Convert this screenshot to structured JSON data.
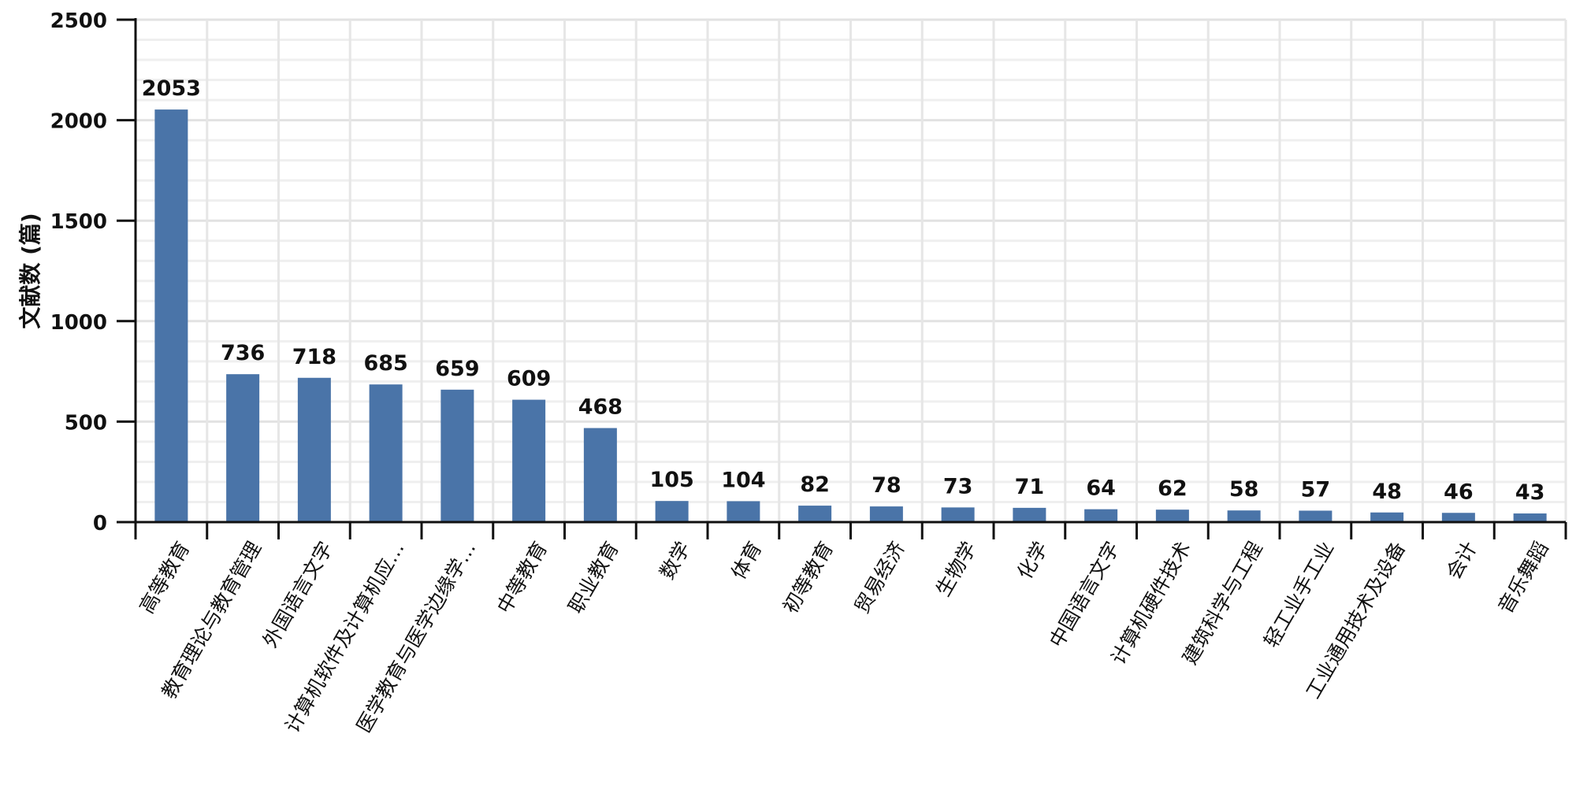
{
  "chart_data": {
    "type": "bar",
    "ylabel": "文献数 (篇)",
    "xlabel": "",
    "ylim": [
      0,
      2500
    ],
    "yticks": [
      "0",
      "500",
      "1000",
      "1500",
      "2000",
      "2500"
    ],
    "grid": true,
    "bar_color": "#4a74a8",
    "categories": [
      "高等教育",
      "教育理论与教育管理",
      "外国语言文字",
      "计算机软件及计算机应…",
      "医学教育与医学边缘学…",
      "中等教育",
      "职业教育",
      "数学",
      "体育",
      "初等教育",
      "贸易经济",
      "生物学",
      "化学",
      "中国语言文字",
      "计算机硬件技术",
      "建筑科学与工程",
      "轻工业手工业",
      "工业通用技术及设备",
      "会计",
      "音乐舞蹈"
    ],
    "values": [
      2053,
      736,
      718,
      685,
      659,
      609,
      468,
      105,
      104,
      82,
      78,
      73,
      71,
      64,
      62,
      58,
      57,
      48,
      46,
      43
    ],
    "value_labels": [
      "2053",
      "736",
      "718",
      "685",
      "659",
      "609",
      "468",
      "105",
      "104",
      "82",
      "78",
      "73",
      "71",
      "64",
      "62",
      "58",
      "57",
      "48",
      "46",
      "43"
    ]
  }
}
